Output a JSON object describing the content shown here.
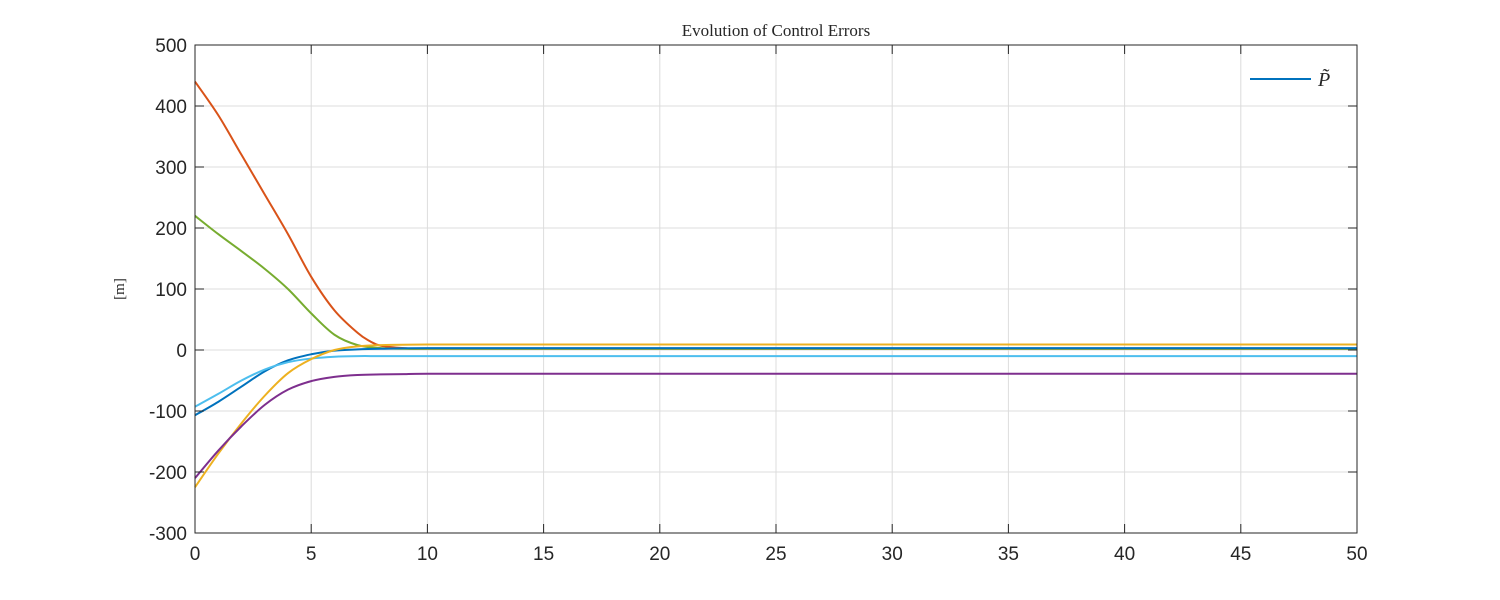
{
  "chart_data": {
    "type": "line",
    "title": "Evolution of Control Errors",
    "xlabel": "",
    "ylabel": "[m]",
    "xlim": [
      0,
      50
    ],
    "ylim": [
      -300,
      500
    ],
    "xticks": [
      0,
      5,
      10,
      15,
      20,
      25,
      30,
      35,
      40,
      45,
      50
    ],
    "yticks": [
      -300,
      -200,
      -100,
      0,
      100,
      200,
      300,
      400,
      500
    ],
    "grid": true,
    "legend": {
      "position": "top-right",
      "entries": [
        "P̃"
      ]
    },
    "series": [
      {
        "color": "#D95319",
        "x": [
          0,
          1,
          2,
          3,
          4,
          5,
          6,
          7,
          7.5,
          8,
          9,
          10,
          15,
          20,
          30,
          40,
          50
        ],
        "y": [
          440,
          385,
          320,
          255,
          190,
          120,
          65,
          28,
          15,
          7,
          3,
          2,
          2,
          2,
          2,
          2,
          2
        ]
      },
      {
        "color": "#77AC30",
        "x": [
          0,
          1,
          2,
          3,
          4,
          5,
          6,
          7,
          8,
          9,
          10,
          15,
          20,
          30,
          40,
          50
        ],
        "y": [
          220,
          190,
          162,
          133,
          100,
          60,
          25,
          8,
          3,
          2,
          2,
          2,
          2,
          2,
          2,
          2
        ]
      },
      {
        "color": "#0072BD",
        "x": [
          0,
          1,
          2,
          3,
          4,
          5,
          6,
          7,
          8,
          10,
          15,
          20,
          30,
          40,
          50
        ],
        "y": [
          -107,
          -85,
          -60,
          -35,
          -17,
          -7,
          -1,
          1,
          2,
          3,
          3,
          3,
          3,
          3,
          3
        ]
      },
      {
        "color": "#4DBEEE",
        "x": [
          0,
          1,
          2,
          3,
          4,
          5,
          6,
          7,
          8,
          10,
          15,
          20,
          30,
          40,
          50
        ],
        "y": [
          -93,
          -72,
          -50,
          -32,
          -20,
          -14,
          -11,
          -10,
          -10,
          -10,
          -10,
          -10,
          -10,
          -10,
          -10
        ]
      },
      {
        "color": "#EDB120",
        "x": [
          0,
          1,
          2,
          3,
          4,
          5,
          6,
          7,
          8,
          10,
          15,
          20,
          30,
          40,
          50
        ],
        "y": [
          -225,
          -170,
          -120,
          -75,
          -38,
          -15,
          0,
          6,
          8,
          9,
          9,
          9,
          9,
          9,
          9
        ]
      },
      {
        "color": "#7E2F8E",
        "x": [
          0,
          1,
          2,
          3,
          4,
          5,
          6,
          7,
          8,
          9,
          10,
          15,
          20,
          30,
          40,
          50
        ],
        "y": [
          -210,
          -165,
          -125,
          -90,
          -65,
          -51,
          -44,
          -41,
          -40,
          -39.5,
          -39,
          -39,
          -39,
          -39,
          -39,
          -39
        ]
      }
    ]
  }
}
